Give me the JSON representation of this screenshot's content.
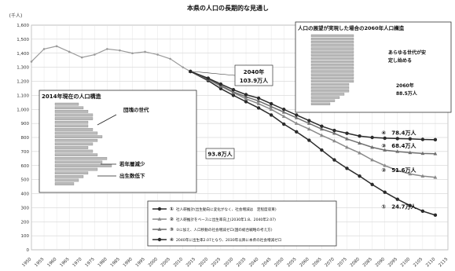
{
  "chart_data": {
    "type": "line",
    "title": "本県の人口の長期的な見通し",
    "ylabel": "(千人)",
    "ylim": [
      0,
      1600
    ],
    "yticks": [
      0,
      100,
      200,
      300,
      400,
      500,
      600,
      700,
      800,
      900,
      1000,
      1100,
      1200,
      1300,
      1400,
      1500,
      1600
    ],
    "xlim": [
      1950,
      2115
    ],
    "xticks": [
      1950,
      1955,
      1960,
      1965,
      1970,
      1975,
      1980,
      1985,
      1990,
      1995,
      2000,
      2005,
      2010,
      2015,
      2020,
      2025,
      2030,
      2035,
      2040,
      2045,
      2050,
      2055,
      2060,
      2065,
      2070,
      2075,
      2080,
      2085,
      2090,
      2095,
      2100,
      2105,
      2110,
      2115
    ],
    "grid": true,
    "historical": {
      "x": [
        1950,
        1955,
        1960,
        1965,
        1970,
        1975,
        1980,
        1985,
        1990,
        1995,
        2000,
        2005,
        2010,
        2013
      ],
      "y": [
        1340,
        1430,
        1450,
        1410,
        1370,
        1390,
        1430,
        1420,
        1400,
        1410,
        1390,
        1360,
        1300,
        1270
      ]
    },
    "series": [
      {
        "id": "s1",
        "color": "#2b2b2b",
        "marker": "circle",
        "x": [
          2013,
          2020,
          2025,
          2030,
          2035,
          2040,
          2045,
          2050,
          2055,
          2060,
          2065,
          2070,
          2075,
          2080,
          2085,
          2090,
          2095,
          2100,
          2105,
          2110
        ],
        "y": [
          1270,
          1205,
          1148,
          1100,
          1055,
          1010,
          960,
          895,
          840,
          780,
          710,
          640,
          580,
          525,
          465,
          410,
          360,
          315,
          275,
          247
        ]
      },
      {
        "id": "s2",
        "color": "#8a8a8a",
        "marker": "triangle",
        "x": [
          2013,
          2020,
          2025,
          2030,
          2035,
          2040,
          2045,
          2050,
          2055,
          2060,
          2065,
          2070,
          2075,
          2080,
          2085,
          2090,
          2095,
          2100,
          2105,
          2110
        ],
        "y": [
          1270,
          1215,
          1165,
          1120,
          1075,
          1040,
          1000,
          950,
          900,
          860,
          815,
          775,
          730,
          690,
          640,
          600,
          565,
          540,
          525,
          516
        ]
      },
      {
        "id": "s3",
        "color": "#6f6f6f",
        "marker": "triangle",
        "x": [
          2013,
          2020,
          2025,
          2030,
          2035,
          2040,
          2045,
          2050,
          2055,
          2060,
          2065,
          2070,
          2075,
          2080,
          2085,
          2090,
          2095,
          2100,
          2105,
          2110
        ],
        "y": [
          1270,
          1218,
          1170,
          1125,
          1090,
          1060,
          1020,
          980,
          940,
          900,
          860,
          830,
          790,
          760,
          730,
          710,
          700,
          692,
          686,
          684
        ]
      },
      {
        "id": "s4",
        "color": "#2b2b2b",
        "marker": "circle",
        "x": [
          2013,
          2020,
          2025,
          2030,
          2035,
          2040,
          2045,
          2050,
          2055,
          2060,
          2065,
          2070,
          2075,
          2080,
          2085,
          2090,
          2095,
          2100,
          2105,
          2110
        ],
        "y": [
          1270,
          1222,
          1180,
          1140,
          1105,
          1080,
          1040,
          1000,
          960,
          920,
          880,
          850,
          830,
          810,
          800,
          795,
          792,
          790,
          786,
          784
        ]
      }
    ],
    "end_labels": [
      {
        "id": "e4",
        "text": "④　78.4万人",
        "series": "s4"
      },
      {
        "id": "e3",
        "text": "③　68.4万人",
        "series": "s3"
      },
      {
        "id": "e2",
        "text": "②　51.6万人",
        "series": "s2"
      },
      {
        "id": "e1",
        "text": "①　24.7万人",
        "series": "s1"
      }
    ],
    "callouts": [
      {
        "id": "c2040",
        "lines": [
          "2040年",
          "103.9万人"
        ],
        "x": 2040,
        "y": 1039
      },
      {
        "id": "c938",
        "lines": [
          "93.8万人"
        ],
        "x": 2040,
        "y": 938
      }
    ],
    "legend": {
      "placement": "bottom-center",
      "items": [
        {
          "num": "①",
          "text": "社人研推計(出生動向に変化がなく、社会増減は　定程度収束)",
          "marker": "circle",
          "color": "#2b2b2b"
        },
        {
          "num": "②",
          "text": "社人研推計をベースに出生率向上(2030年1.8、2040年2.07)",
          "marker": "triangle",
          "color": "#8a8a8a"
        },
        {
          "num": "③",
          "text": "②に加え、人口移動の社会増減ゼロ(国の総合戦略の考え方)",
          "marker": "triangle",
          "color": "#6f6f6f"
        },
        {
          "num": "④",
          "text": "2040年に出生率2.07となり、2030年以降に本県の社会増減ゼロ",
          "marker": "circle",
          "color": "#2b2b2b"
        }
      ]
    },
    "insets": [
      {
        "id": "inset-2014",
        "title": "2014年現在の人口構造",
        "annotations": [
          "団塊の世代",
          "若年層減少",
          "出生数低下"
        ],
        "bars": [
          5,
          6,
          7,
          8,
          8,
          7,
          7,
          8,
          9,
          10,
          9,
          8,
          7,
          8,
          9,
          11,
          10,
          12,
          9,
          7,
          6,
          5,
          4
        ]
      },
      {
        "id": "inset-2060",
        "title": "人口の展望が実現した場合の2060年人口構造",
        "annotations": [
          "あらゆる世代が安",
          "定し始める",
          "2060年",
          "88.5万人"
        ],
        "bars": [
          9,
          9,
          9,
          9,
          9,
          9,
          9,
          9,
          9,
          9,
          9,
          9,
          9,
          9,
          9,
          8,
          8,
          8,
          7,
          6,
          5,
          4
        ]
      }
    ]
  }
}
